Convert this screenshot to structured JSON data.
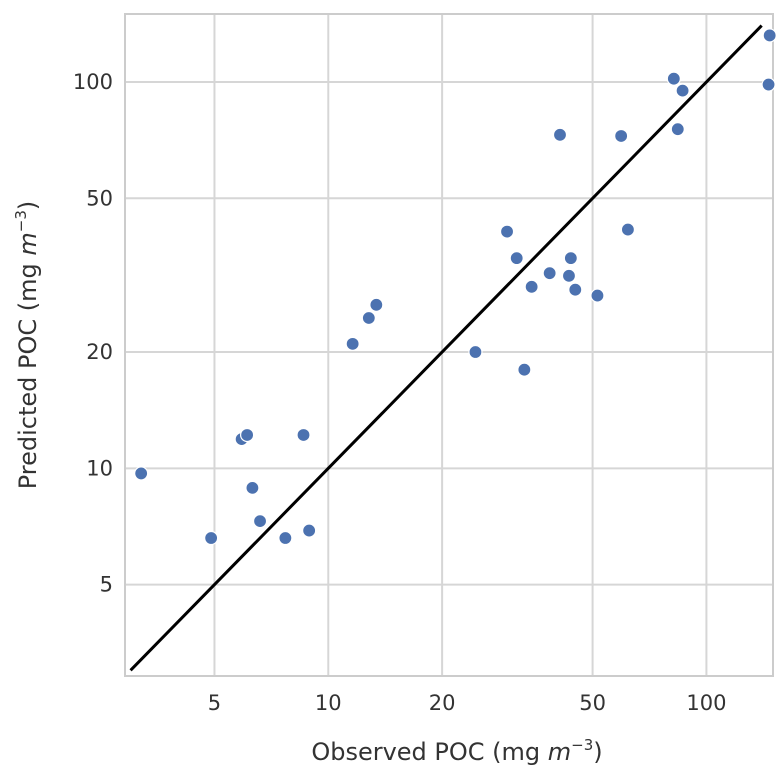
{
  "chart_data": {
    "type": "scatter",
    "scale": "log",
    "grid": true,
    "legend": "none",
    "xlabel": "Observed POC (mg $m^{-3}$)",
    "ylabel": "Predicted POC (mg $m^{-3}$)",
    "xlabel_parts": {
      "prefix": "Observed POC (mg ",
      "var": "m",
      "exp": "−3",
      "suffix": ")"
    },
    "ylabel_parts": {
      "prefix": "Predicted POC (mg ",
      "var": "m",
      "exp": "−3",
      "suffix": ")"
    },
    "xlim": [
      2.9,
      150
    ],
    "ylim": [
      2.9,
      150
    ],
    "xticks": [
      5,
      10,
      20,
      50,
      100
    ],
    "yticks": [
      5,
      10,
      20,
      50,
      100
    ],
    "xtick_labels": [
      "5",
      "10",
      "20",
      "50",
      "100"
    ],
    "ytick_labels": [
      "5",
      "10",
      "20",
      "50",
      "100"
    ],
    "colors": {
      "points": "#4c72b0",
      "line": "#000000",
      "grid": "#d6d6d6",
      "frame": "#cccccc"
    },
    "reference_line": {
      "type": "1:1",
      "x": [
        3,
        140
      ],
      "y": [
        3,
        140
      ]
    },
    "series": [
      {
        "points": [
          {
            "x": 3.2,
            "y": 9.7
          },
          {
            "x": 4.9,
            "y": 6.6
          },
          {
            "x": 5.9,
            "y": 11.9
          },
          {
            "x": 6.1,
            "y": 12.2
          },
          {
            "x": 6.3,
            "y": 8.9
          },
          {
            "x": 6.6,
            "y": 7.3
          },
          {
            "x": 7.7,
            "y": 6.6
          },
          {
            "x": 8.6,
            "y": 12.2
          },
          {
            "x": 8.9,
            "y": 6.9
          },
          {
            "x": 11.6,
            "y": 21.0
          },
          {
            "x": 12.8,
            "y": 24.5
          },
          {
            "x": 13.4,
            "y": 26.5
          },
          {
            "x": 24.5,
            "y": 20.0
          },
          {
            "x": 29.7,
            "y": 41.0
          },
          {
            "x": 31.5,
            "y": 35.0
          },
          {
            "x": 33.0,
            "y": 18.0
          },
          {
            "x": 34.5,
            "y": 29.5
          },
          {
            "x": 38.5,
            "y": 32.0
          },
          {
            "x": 41.0,
            "y": 73.0
          },
          {
            "x": 43.3,
            "y": 31.5
          },
          {
            "x": 43.8,
            "y": 35.0
          },
          {
            "x": 45.0,
            "y": 29.0
          },
          {
            "x": 51.5,
            "y": 28.0
          },
          {
            "x": 59.5,
            "y": 72.5
          },
          {
            "x": 62.0,
            "y": 41.5
          },
          {
            "x": 82.0,
            "y": 102.0
          },
          {
            "x": 84.0,
            "y": 75.5
          },
          {
            "x": 86.5,
            "y": 95.0
          },
          {
            "x": 146.0,
            "y": 98.5
          },
          {
            "x": 147.0,
            "y": 132.0
          }
        ]
      }
    ]
  }
}
